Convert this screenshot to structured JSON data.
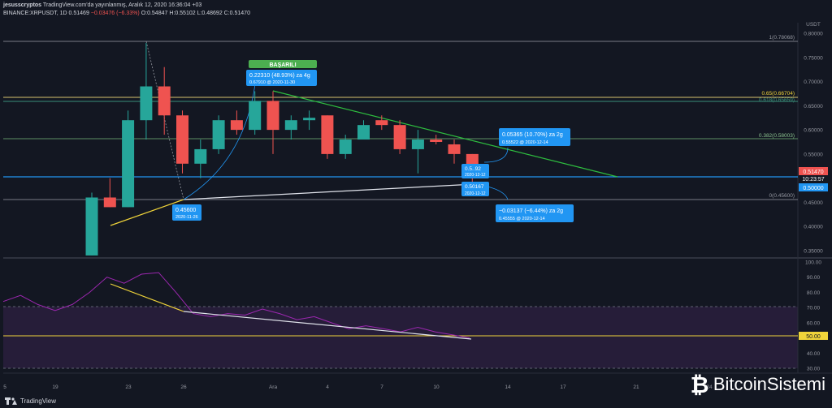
{
  "header": {
    "author": "jesusscryptos",
    "published": "TradingView.com'da yayınlanmış, Aralık 12, 2020 16:36:04 +03",
    "symbol": "BINANCE:XRPUSDT, 1D",
    "last": "0.51469",
    "change": "−0.03476 (−6.33%)",
    "ohlc": "O:0.54847 H:0.55102 L:0.48692 C:0.51470"
  },
  "price_axis": {
    "currency": "USDT",
    "ticks": [
      "0.80000",
      "0.75000",
      "0.70000",
      "0.65000",
      "0.60000",
      "0.55000",
      "0.50000",
      "0.45000",
      "0.40000",
      "0.35000"
    ],
    "last_price": "0.51470",
    "countdown": "10:23:57",
    "line_label": "0.50000"
  },
  "rsi_axis": {
    "ticks": [
      "100.00",
      "90.00",
      "80.00",
      "70.00",
      "60.00",
      "50.00",
      "40.00",
      "30.00"
    ],
    "highlight": "50.00"
  },
  "time_axis": {
    "ticks": [
      "5",
      "19",
      "23",
      "26",
      "Ara",
      "4",
      "7",
      "10",
      "14",
      "17",
      "21",
      "24"
    ]
  },
  "fib_labels": [
    "1(0.78068)",
    "0.65(0.66704)",
    "0.618(0.65659)",
    "0.382(0.58003)",
    "0(0.45600)"
  ],
  "annotations": {
    "success_badge": "BAŞARILI",
    "box1_main": "0.22310 (48.93%) za 4g",
    "box1_sub": "0.67910 @ 2020-11-30",
    "box2_main": "0.45600",
    "box2_sub": "2020-11-26",
    "box3_main": "0.05365 (10.70%) za 2g",
    "box3_sub": "0.55522 @ 2020-12-14",
    "box4_main": "0.50167",
    "box4_sub": "2020-12-12",
    "box5_sub": "2020-12-12",
    "box5_main": "0.5..92",
    "box6_main": "−0.03137 (−6.44%) za 2g",
    "box6_sub": "0.45555 @ 2020-12-14"
  },
  "branding": {
    "tradingview": "TradingView",
    "site": "BitcoinSistemi"
  },
  "colors": {
    "background": "#131722",
    "up": "#26a69a",
    "down": "#ef5350",
    "trendline": "#2ebd3f",
    "support": "#e0e3eb",
    "yellow": "#f0d43a",
    "label_blue": "#2196f3",
    "rsi": "#9c27b0"
  },
  "chart_data": {
    "type": "candlestick",
    "ylim": [
      0.33,
      0.81
    ],
    "candles": [
      {
        "date": "2020-11-20",
        "o": 0.34,
        "h": 0.47,
        "l": 0.34,
        "c": 0.46
      },
      {
        "date": "2020-11-21",
        "o": 0.46,
        "h": 0.5,
        "l": 0.44,
        "c": 0.44
      },
      {
        "date": "2020-11-22",
        "o": 0.44,
        "h": 0.64,
        "l": 0.44,
        "c": 0.62
      },
      {
        "date": "2020-11-23",
        "o": 0.62,
        "h": 0.78,
        "l": 0.58,
        "c": 0.69
      },
      {
        "date": "2020-11-24",
        "o": 0.69,
        "h": 0.73,
        "l": 0.59,
        "c": 0.63
      },
      {
        "date": "2020-11-25",
        "o": 0.63,
        "h": 0.64,
        "l": 0.51,
        "c": 0.53
      },
      {
        "date": "2020-11-26",
        "o": 0.53,
        "h": 0.58,
        "l": 0.5,
        "c": 0.56
      },
      {
        "date": "2020-11-27",
        "o": 0.56,
        "h": 0.63,
        "l": 0.55,
        "c": 0.62
      },
      {
        "date": "2020-11-28",
        "o": 0.62,
        "h": 0.64,
        "l": 0.59,
        "c": 0.6
      },
      {
        "date": "2020-11-29",
        "o": 0.6,
        "h": 0.68,
        "l": 0.59,
        "c": 0.66
      },
      {
        "date": "2020-11-30",
        "o": 0.66,
        "h": 0.68,
        "l": 0.55,
        "c": 0.6
      },
      {
        "date": "2020-12-01",
        "o": 0.6,
        "h": 0.63,
        "l": 0.58,
        "c": 0.62
      },
      {
        "date": "2020-12-02",
        "o": 0.62,
        "h": 0.64,
        "l": 0.6,
        "c": 0.625
      },
      {
        "date": "2020-12-03",
        "o": 0.63,
        "h": 0.63,
        "l": 0.54,
        "c": 0.55
      },
      {
        "date": "2020-12-04",
        "o": 0.55,
        "h": 0.59,
        "l": 0.54,
        "c": 0.58
      },
      {
        "date": "2020-12-05",
        "o": 0.58,
        "h": 0.62,
        "l": 0.58,
        "c": 0.61
      },
      {
        "date": "2020-12-06",
        "o": 0.62,
        "h": 0.63,
        "l": 0.6,
        "c": 0.61
      },
      {
        "date": "2020-12-07",
        "o": 0.61,
        "h": 0.62,
        "l": 0.55,
        "c": 0.56
      },
      {
        "date": "2020-12-08",
        "o": 0.56,
        "h": 0.6,
        "l": 0.51,
        "c": 0.58
      },
      {
        "date": "2020-12-09",
        "o": 0.58,
        "h": 0.59,
        "l": 0.57,
        "c": 0.575
      },
      {
        "date": "2020-12-10",
        "o": 0.57,
        "h": 0.58,
        "l": 0.53,
        "c": 0.55
      },
      {
        "date": "2020-12-11",
        "o": 0.55,
        "h": 0.55,
        "l": 0.49,
        "c": 0.515
      }
    ],
    "rsi": {
      "ylim": [
        25,
        105
      ],
      "values": [
        74,
        78,
        72,
        68,
        72,
        80,
        90,
        86,
        92,
        93,
        80,
        66,
        64,
        66,
        65,
        69,
        66,
        62,
        64,
        60,
        56,
        58,
        56,
        54,
        57,
        54,
        52,
        50
      ]
    }
  }
}
